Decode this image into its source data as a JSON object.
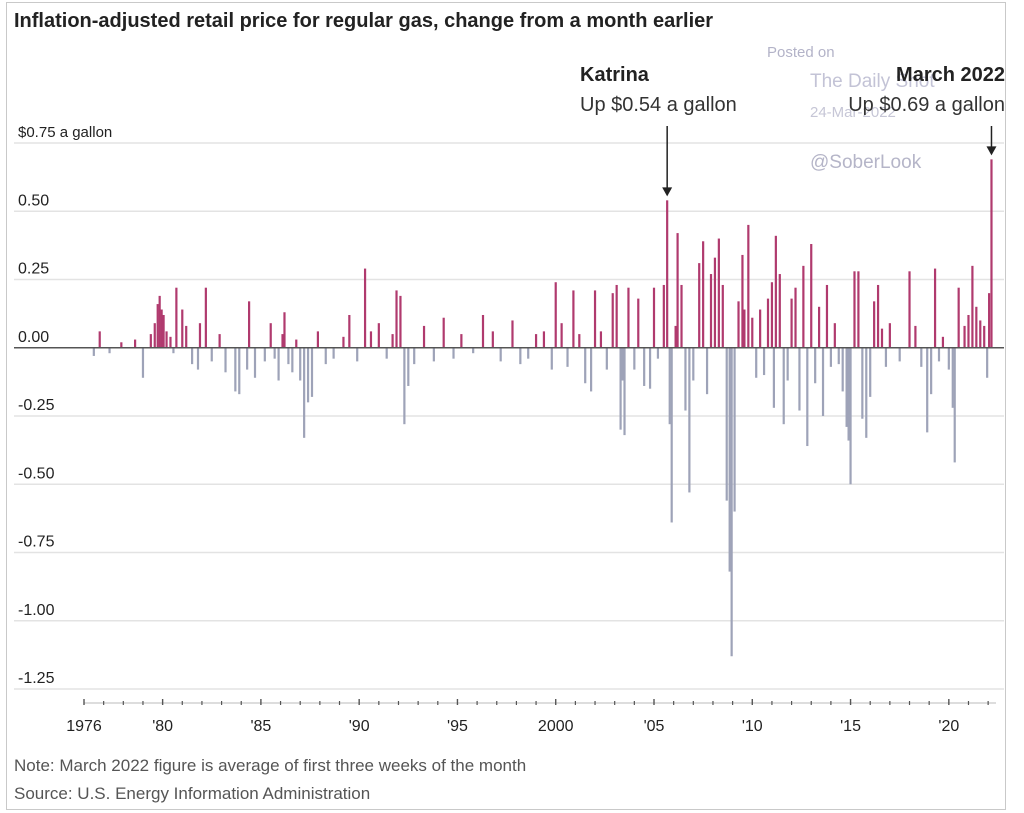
{
  "title": "Inflation-adjusted retail price for regular gas, change from a month earlier",
  "watermark": {
    "posted": "Posted on",
    "site": "The Daily Shot",
    "date": "24-Mar-2022",
    "handle": "@SoberLook"
  },
  "note": "Note: March 2022 figure is average of first three weeks of the month",
  "source": "Source: U.S. Energy Information Administration",
  "colors": {
    "positive": "#b03a6e",
    "negative": "#9ea3b8",
    "grid": "#e3e3e3",
    "axis": "#555555"
  },
  "chart_data": {
    "type": "bar",
    "ylim": [
      -1.25,
      0.75
    ],
    "y_ticks": [
      {
        "value": 0.75,
        "label": "$0.75 a gallon"
      },
      {
        "value": 0.5,
        "label": "0.50"
      },
      {
        "value": 0.25,
        "label": "0.25"
      },
      {
        "value": 0,
        "label": "0.00"
      },
      {
        "value": -0.25,
        "label": "-0.25"
      },
      {
        "value": -0.5,
        "label": "-0.50"
      },
      {
        "value": -0.75,
        "label": "-0.75"
      },
      {
        "value": -1.0,
        "label": "-1.00"
      },
      {
        "value": -1.25,
        "label": "-1.25"
      }
    ],
    "x_ticks": [
      {
        "year": 1976,
        "label": "1976"
      },
      {
        "year": 1980,
        "label": "'80"
      },
      {
        "year": 1985,
        "label": "'85"
      },
      {
        "year": 1990,
        "label": "'90"
      },
      {
        "year": 1995,
        "label": "'95"
      },
      {
        "year": 2000,
        "label": "2000"
      },
      {
        "year": 2005,
        "label": "'05"
      },
      {
        "year": 2010,
        "label": "'10"
      },
      {
        "year": 2015,
        "label": "'15"
      },
      {
        "year": 2020,
        "label": "'20"
      }
    ],
    "xlim": [
      1976,
      2022.4
    ],
    "annotations": [
      {
        "title": "Katrina",
        "text": "Up $0.54 a gallon",
        "x": 2005.67,
        "y": 0.54
      },
      {
        "title": "March 2022",
        "text": "Up $0.69 a gallon",
        "x": 2022.17,
        "y": 0.69
      }
    ],
    "points": [
      [
        1976.5,
        -0.03
      ],
      [
        1976.8,
        0.06
      ],
      [
        1977.3,
        -0.02
      ],
      [
        1977.9,
        0.02
      ],
      [
        1978.6,
        0.03
      ],
      [
        1979.0,
        -0.11
      ],
      [
        1979.4,
        0.05
      ],
      [
        1979.6,
        0.09
      ],
      [
        1979.75,
        0.16
      ],
      [
        1979.85,
        0.19
      ],
      [
        1979.95,
        0.14
      ],
      [
        1980.05,
        0.12
      ],
      [
        1980.2,
        0.06
      ],
      [
        1980.4,
        0.04
      ],
      [
        1980.55,
        -0.02
      ],
      [
        1980.7,
        0.22
      ],
      [
        1981.0,
        0.14
      ],
      [
        1981.2,
        0.08
      ],
      [
        1981.5,
        -0.06
      ],
      [
        1981.8,
        -0.08
      ],
      [
        1981.9,
        0.09
      ],
      [
        1982.2,
        0.22
      ],
      [
        1982.5,
        -0.05
      ],
      [
        1982.9,
        0.05
      ],
      [
        1983.2,
        -0.09
      ],
      [
        1983.7,
        -0.16
      ],
      [
        1983.9,
        -0.17
      ],
      [
        1984.3,
        -0.08
      ],
      [
        1984.4,
        0.17
      ],
      [
        1984.7,
        -0.11
      ],
      [
        1985.2,
        -0.05
      ],
      [
        1985.5,
        0.09
      ],
      [
        1985.7,
        -0.04
      ],
      [
        1985.9,
        -0.12
      ],
      [
        1986.1,
        0.05
      ],
      [
        1986.2,
        0.13
      ],
      [
        1986.4,
        -0.06
      ],
      [
        1986.6,
        -0.09
      ],
      [
        1986.8,
        0.03
      ],
      [
        1987.0,
        -0.12
      ],
      [
        1987.2,
        -0.33
      ],
      [
        1987.4,
        -0.2
      ],
      [
        1987.6,
        -0.18
      ],
      [
        1987.9,
        0.06
      ],
      [
        1988.3,
        -0.06
      ],
      [
        1988.7,
        -0.04
      ],
      [
        1989.2,
        0.04
      ],
      [
        1989.5,
        0.12
      ],
      [
        1989.9,
        -0.05
      ],
      [
        1990.3,
        0.29
      ],
      [
        1990.6,
        0.06
      ],
      [
        1991.0,
        0.09
      ],
      [
        1991.4,
        -0.04
      ],
      [
        1991.7,
        0.05
      ],
      [
        1991.9,
        0.21
      ],
      [
        1992.1,
        0.19
      ],
      [
        1992.3,
        -0.28
      ],
      [
        1992.5,
        -0.14
      ],
      [
        1992.8,
        -0.06
      ],
      [
        1993.3,
        0.08
      ],
      [
        1993.8,
        -0.05
      ],
      [
        1994.3,
        0.11
      ],
      [
        1994.8,
        -0.04
      ],
      [
        1995.2,
        0.05
      ],
      [
        1995.8,
        -0.02
      ],
      [
        1996.3,
        0.12
      ],
      [
        1996.8,
        0.06
      ],
      [
        1997.2,
        -0.05
      ],
      [
        1997.8,
        0.1
      ],
      [
        1998.2,
        -0.06
      ],
      [
        1998.6,
        -0.04
      ],
      [
        1999.0,
        0.05
      ],
      [
        1999.4,
        0.06
      ],
      [
        1999.8,
        -0.08
      ],
      [
        2000.0,
        0.24
      ],
      [
        2000.3,
        0.09
      ],
      [
        2000.6,
        -0.07
      ],
      [
        2000.9,
        0.21
      ],
      [
        2001.2,
        0.05
      ],
      [
        2001.5,
        -0.13
      ],
      [
        2001.8,
        -0.16
      ],
      [
        2002.0,
        0.21
      ],
      [
        2002.3,
        0.06
      ],
      [
        2002.6,
        -0.08
      ],
      [
        2002.9,
        0.2
      ],
      [
        2003.1,
        0.23
      ],
      [
        2003.3,
        -0.3
      ],
      [
        2003.4,
        -0.12
      ],
      [
        2003.5,
        -0.32
      ],
      [
        2003.7,
        0.22
      ],
      [
        2004.0,
        -0.08
      ],
      [
        2004.2,
        0.18
      ],
      [
        2004.5,
        -0.14
      ],
      [
        2004.8,
        -0.15
      ],
      [
        2005.0,
        0.22
      ],
      [
        2005.2,
        -0.04
      ],
      [
        2005.5,
        0.23
      ],
      [
        2005.67,
        0.54
      ],
      [
        2005.8,
        -0.28
      ],
      [
        2005.9,
        -0.64
      ],
      [
        2006.1,
        0.08
      ],
      [
        2006.2,
        0.42
      ],
      [
        2006.4,
        0.23
      ],
      [
        2006.6,
        -0.23
      ],
      [
        2006.8,
        -0.53
      ],
      [
        2007.0,
        -0.12
      ],
      [
        2007.3,
        0.31
      ],
      [
        2007.5,
        0.39
      ],
      [
        2007.7,
        -0.17
      ],
      [
        2007.9,
        0.27
      ],
      [
        2008.1,
        0.33
      ],
      [
        2008.3,
        0.4
      ],
      [
        2008.5,
        0.23
      ],
      [
        2008.7,
        -0.56
      ],
      [
        2008.85,
        -0.82
      ],
      [
        2008.95,
        -1.13
      ],
      [
        2009.1,
        -0.6
      ],
      [
        2009.3,
        0.17
      ],
      [
        2009.5,
        0.34
      ],
      [
        2009.6,
        0.14
      ],
      [
        2009.8,
        0.45
      ],
      [
        2010.0,
        0.11
      ],
      [
        2010.2,
        -0.11
      ],
      [
        2010.4,
        0.14
      ],
      [
        2010.6,
        -0.1
      ],
      [
        2010.8,
        0.18
      ],
      [
        2011.0,
        0.24
      ],
      [
        2011.1,
        -0.22
      ],
      [
        2011.2,
        0.41
      ],
      [
        2011.4,
        0.27
      ],
      [
        2011.6,
        -0.28
      ],
      [
        2011.8,
        -0.12
      ],
      [
        2012.0,
        0.18
      ],
      [
        2012.2,
        0.22
      ],
      [
        2012.4,
        -0.23
      ],
      [
        2012.6,
        0.3
      ],
      [
        2012.8,
        -0.36
      ],
      [
        2013.0,
        0.38
      ],
      [
        2013.2,
        -0.13
      ],
      [
        2013.4,
        0.15
      ],
      [
        2013.6,
        -0.25
      ],
      [
        2013.8,
        0.23
      ],
      [
        2014.0,
        -0.07
      ],
      [
        2014.2,
        0.09
      ],
      [
        2014.4,
        -0.06
      ],
      [
        2014.6,
        -0.16
      ],
      [
        2014.8,
        -0.29
      ],
      [
        2014.9,
        -0.34
      ],
      [
        2015.0,
        -0.5
      ],
      [
        2015.2,
        0.28
      ],
      [
        2015.4,
        0.28
      ],
      [
        2015.6,
        -0.26
      ],
      [
        2015.8,
        -0.33
      ],
      [
        2016.0,
        -0.18
      ],
      [
        2016.2,
        0.17
      ],
      [
        2016.4,
        0.23
      ],
      [
        2016.6,
        0.07
      ],
      [
        2016.8,
        -0.07
      ],
      [
        2017.0,
        0.09
      ],
      [
        2017.5,
        -0.05
      ],
      [
        2018.0,
        0.28
      ],
      [
        2018.3,
        0.08
      ],
      [
        2018.6,
        -0.07
      ],
      [
        2018.9,
        -0.31
      ],
      [
        2019.1,
        -0.17
      ],
      [
        2019.3,
        0.29
      ],
      [
        2019.5,
        -0.05
      ],
      [
        2019.7,
        0.04
      ],
      [
        2020.0,
        -0.08
      ],
      [
        2020.2,
        -0.22
      ],
      [
        2020.3,
        -0.42
      ],
      [
        2020.5,
        0.22
      ],
      [
        2020.8,
        0.08
      ],
      [
        2021.0,
        0.12
      ],
      [
        2021.2,
        0.3
      ],
      [
        2021.4,
        0.15
      ],
      [
        2021.6,
        0.1
      ],
      [
        2021.8,
        0.08
      ],
      [
        2021.95,
        -0.11
      ],
      [
        2022.05,
        0.2
      ],
      [
        2022.17,
        0.69
      ]
    ]
  }
}
